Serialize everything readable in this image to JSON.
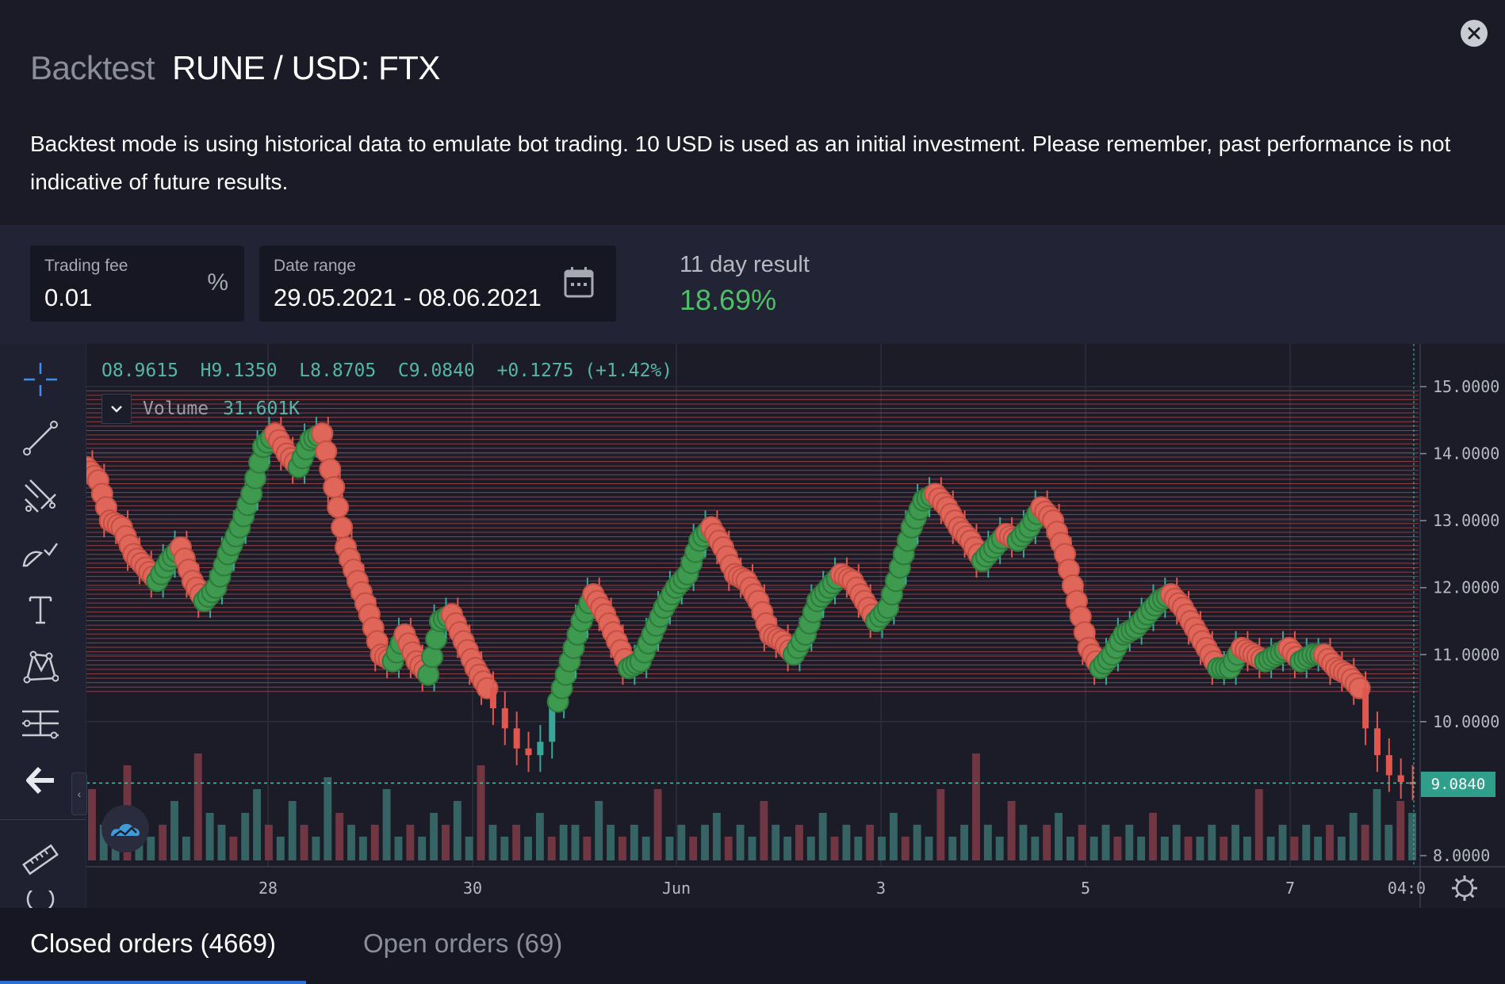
{
  "header": {
    "prefix": "Backtest",
    "pair": "RUNE / USD: FTX"
  },
  "description": "Backtest mode is using historical data to emulate bot trading. 10 USD is used as an initial investment. Please remember, past performance is not indicative of future results.",
  "controls": {
    "trading_fee": {
      "label": "Trading fee",
      "value": "0.01",
      "suffix": "%"
    },
    "date_range": {
      "label": "Date range",
      "value": "29.05.2021 - 08.06.2021"
    },
    "result": {
      "label": "11 day result",
      "value": "18.69%"
    }
  },
  "chart_data": {
    "type": "candlestick",
    "legend": {
      "open": "O8.9615",
      "high": "H9.1350",
      "low": "L8.8705",
      "close": "C9.0840",
      "change": "+0.1275 (+1.42%)"
    },
    "volume": {
      "label": "Volume",
      "value": "31.601K"
    },
    "y_ticks": [
      "15.0000",
      "14.0000",
      "13.0000",
      "12.0000",
      "11.0000",
      "10.0000",
      "8.0000"
    ],
    "x_ticks": [
      "28",
      "30",
      "Jun",
      "3",
      "5",
      "7",
      "04:0"
    ],
    "last_price": "9.0840",
    "ylim": [
      8,
      15
    ],
    "grid_lines": {
      "from": 10.45,
      "to": 15.0
    },
    "close_series": [
      13.6,
      13.0,
      12.9,
      12.5,
      12.3,
      12.1,
      12.4,
      12.6,
      12.1,
      11.8,
      12.0,
      12.5,
      12.9,
      13.4,
      14.1,
      14.3,
      14.0,
      13.8,
      14.2,
      14.3,
      13.5,
      12.6,
      12.1,
      11.6,
      11.0,
      10.9,
      11.3,
      10.9,
      10.7,
      11.5,
      11.6,
      11.2,
      10.8,
      10.5,
      10.2,
      9.9,
      9.6,
      9.5,
      9.7,
      10.3,
      10.9,
      11.5,
      11.9,
      11.6,
      11.2,
      10.8,
      10.9,
      11.3,
      11.7,
      12.0,
      12.2,
      12.7,
      12.9,
      12.6,
      12.2,
      12.1,
      11.8,
      11.3,
      11.2,
      11.0,
      11.3,
      11.8,
      12.0,
      12.2,
      12.1,
      11.8,
      11.5,
      11.7,
      12.3,
      12.9,
      13.3,
      13.4,
      13.2,
      12.9,
      12.7,
      12.4,
      12.6,
      12.8,
      12.7,
      12.9,
      13.2,
      13.0,
      12.5,
      11.8,
      11.1,
      10.8,
      11.0,
      11.3,
      11.4,
      11.6,
      11.8,
      11.9,
      11.7,
      11.4,
      11.1,
      10.8,
      10.8,
      11.1,
      11.0,
      10.9,
      11.0,
      11.1,
      10.9,
      11.0,
      11.0,
      10.8,
      10.7,
      10.5,
      9.9,
      9.5,
      9.2,
      9.1,
      9.08
    ],
    "volumes": [
      0.6,
      0.3,
      0.2,
      0.8,
      0.4,
      0.2,
      0.3,
      0.5,
      0.2,
      0.9,
      0.4,
      0.3,
      0.2,
      0.4,
      0.6,
      0.3,
      0.2,
      0.5,
      0.3,
      0.2,
      0.7,
      0.4,
      0.3,
      0.2,
      0.3,
      0.6,
      0.2,
      0.3,
      0.2,
      0.4,
      0.3,
      0.5,
      0.2,
      0.8,
      0.3,
      0.2,
      0.3,
      0.2,
      0.4,
      0.2,
      0.3,
      0.3,
      0.2,
      0.5,
      0.3,
      0.2,
      0.3,
      0.2,
      0.6,
      0.2,
      0.3,
      0.2,
      0.3,
      0.4,
      0.2,
      0.3,
      0.2,
      0.5,
      0.3,
      0.2,
      0.3,
      0.2,
      0.4,
      0.2,
      0.3,
      0.2,
      0.3,
      0.2,
      0.4,
      0.2,
      0.3,
      0.2,
      0.6,
      0.2,
      0.3,
      0.9,
      0.3,
      0.2,
      0.5,
      0.3,
      0.2,
      0.3,
      0.4,
      0.2,
      0.3,
      0.2,
      0.3,
      0.2,
      0.3,
      0.2,
      0.4,
      0.2,
      0.3,
      0.2,
      0.2,
      0.3,
      0.2,
      0.3,
      0.2,
      0.6,
      0.2,
      0.3,
      0.2,
      0.3,
      0.2,
      0.3,
      0.2,
      0.4,
      0.3,
      0.6,
      0.3,
      0.5,
      0.4
    ]
  },
  "tabs": [
    {
      "label": "Closed orders (4669)",
      "active": true
    },
    {
      "label": "Open orders (69)",
      "active": false
    }
  ]
}
